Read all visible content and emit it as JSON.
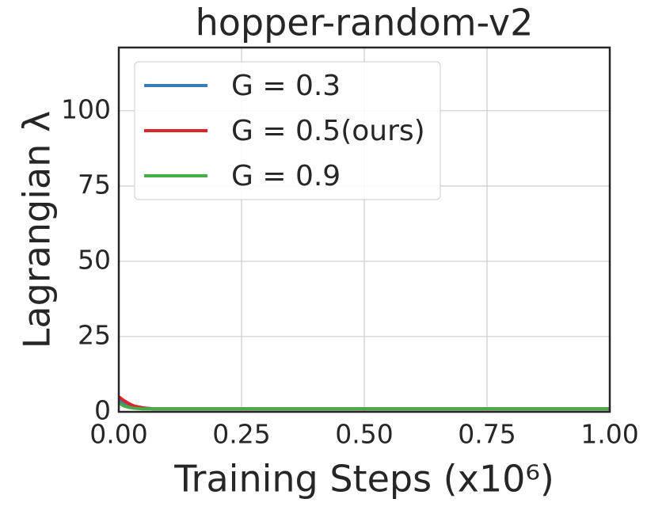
{
  "chart_data": {
    "type": "line",
    "title": "hopper-random-v2",
    "xlabel": "Training Steps (x10⁶)",
    "ylabel": "Lagrangian λ",
    "x": [
      0,
      0.01,
      0.02,
      0.03,
      0.05,
      0.07,
      0.1,
      0.2,
      0.3,
      0.4,
      0.5,
      0.6,
      0.7,
      0.8,
      0.9,
      1.0
    ],
    "series": [
      {
        "name": "G = 0.3",
        "color": "#3a7bb0",
        "values": [
          4,
          3,
          2.3,
          1.8,
          1.3,
          1,
          1,
          1,
          1,
          1,
          1,
          1,
          1,
          1,
          1,
          1
        ]
      },
      {
        "name": "G = 0.5(ours)",
        "color": "#d9252b",
        "values": [
          5,
          3.8,
          2.8,
          2,
          1.3,
          1,
          1,
          1,
          1,
          1,
          1,
          1,
          1,
          1,
          1,
          1
        ]
      },
      {
        "name": "G = 0.9",
        "color": "#4aac47",
        "values": [
          3,
          2,
          1.5,
          1.2,
          1,
          1,
          1,
          1,
          1,
          1,
          1,
          1,
          1,
          1,
          1,
          1
        ]
      }
    ],
    "xlim": [
      0,
      1
    ],
    "xticks": [
      {
        "value": 0,
        "label": "0.00"
      },
      {
        "value": 0.25,
        "label": "0.25"
      },
      {
        "value": 0.5,
        "label": "0.50"
      },
      {
        "value": 0.75,
        "label": "0.75"
      },
      {
        "value": 1,
        "label": "1.00"
      }
    ],
    "ylim": [
      0,
      121
    ],
    "yticks": [
      0,
      25,
      50,
      75,
      100
    ],
    "grid": true,
    "legend": "upper left"
  }
}
